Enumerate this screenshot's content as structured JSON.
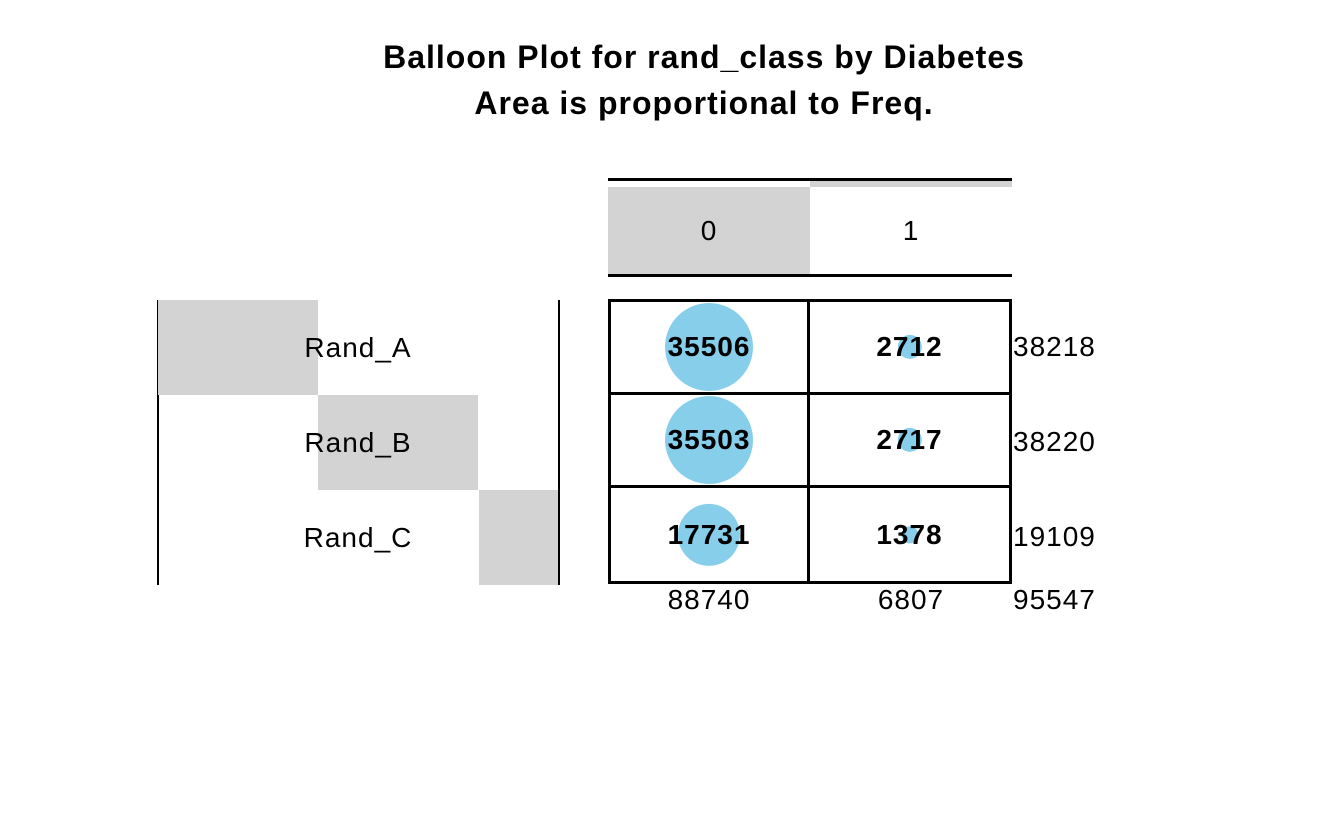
{
  "title": {
    "line1": "Balloon Plot for rand_class by Diabetes",
    "line2": "Area is proportional to Freq."
  },
  "colors": {
    "balloon_fill": "#87CEEB",
    "label_shading": "#D3D3D3",
    "rule": "#000000",
    "text": "#000000"
  },
  "chart_data": {
    "type": "balloon",
    "title": "Balloon Plot for rand_class by Diabetes",
    "subtitle": "Area is proportional to Freq.",
    "x_variable": "Diabetes",
    "y_variable": "rand_class",
    "area_proportional_to": "Freq",
    "columns": [
      "0",
      "1"
    ],
    "rows": [
      "Rand_A",
      "Rand_B",
      "Rand_C"
    ],
    "values": [
      [
        35506,
        2712
      ],
      [
        35503,
        2717
      ],
      [
        17731,
        1378
      ]
    ],
    "row_totals": [
      38218,
      38220,
      19109
    ],
    "column_totals": [
      88740,
      6807
    ],
    "grand_total": 95547,
    "max_balloon_radius_px": 44,
    "legend_position": "none",
    "grid": "table-borders"
  }
}
